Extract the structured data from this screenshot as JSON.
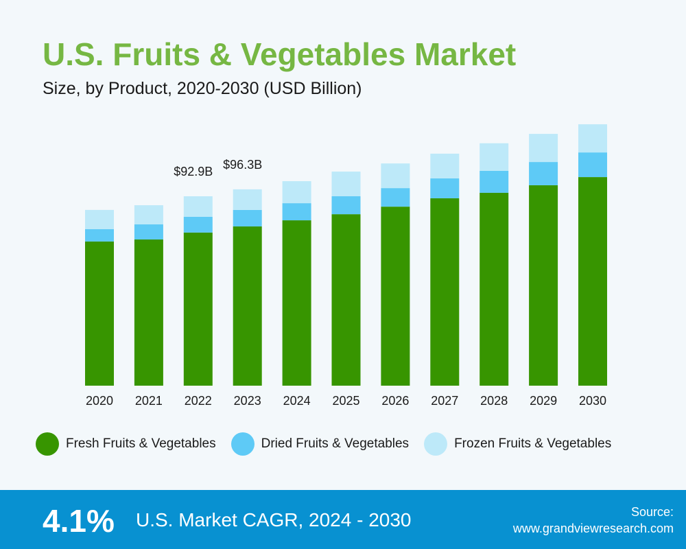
{
  "header": {
    "title": "U.S. Fruits & Vegetables Market",
    "subtitle": "Size, by Product, 2020-2030 (USD Billion)"
  },
  "chart_data": {
    "type": "bar",
    "stacked": true,
    "categories": [
      "2020",
      "2021",
      "2022",
      "2023",
      "2024",
      "2025",
      "2026",
      "2027",
      "2028",
      "2029",
      "2030"
    ],
    "series": [
      {
        "name": "Fresh Fruits & Vegetables",
        "color": "#379500",
        "values": [
          70.7,
          71.7,
          75.1,
          78.1,
          81.1,
          84.1,
          87.8,
          91.9,
          94.6,
          98.3,
          102.3
        ]
      },
      {
        "name": "Dried Fruits & Vegetables",
        "color": "#5ecaf6",
        "values": [
          6.1,
          7.4,
          7.7,
          8.1,
          8.4,
          8.8,
          9.1,
          9.8,
          10.8,
          11.4,
          12.1
        ]
      },
      {
        "name": "Frozen Fruits & Vegetables",
        "color": "#bde9f9",
        "values": [
          9.4,
          9.4,
          10.1,
          10.1,
          10.8,
          12.1,
          12.1,
          12.1,
          13.5,
          13.8,
          13.8
        ]
      }
    ],
    "annotations": [
      {
        "category": "2022",
        "text": "$92.9B"
      },
      {
        "category": "2023",
        "text": "$96.3B"
      }
    ],
    "ylim": [
      0,
      130
    ],
    "grid": false,
    "legend": "bottom"
  },
  "footer": {
    "cagr_value": "4.1%",
    "cagr_label": "U.S. Market CAGR, 2024 - 2030",
    "source_label": "Source:",
    "source_url": "www.grandviewresearch.com"
  },
  "colors": {
    "title": "#76b743",
    "banner": "#0891d1",
    "background": "#f3f8fb"
  }
}
